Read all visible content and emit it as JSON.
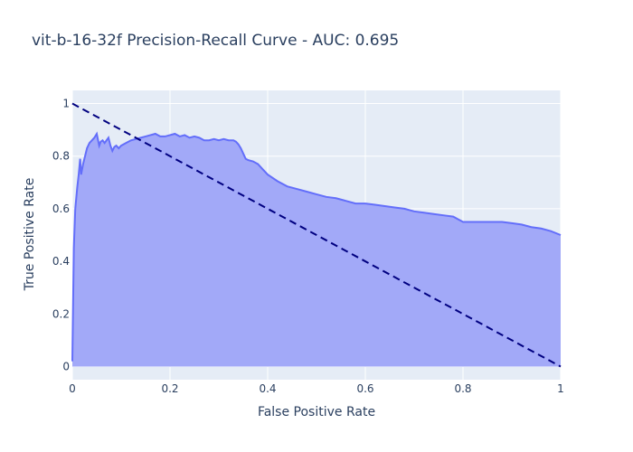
{
  "chart_data": {
    "type": "area",
    "title": "vit-b-16-32f Precision-Recall Curve - AUC: 0.695",
    "xlabel": "False Positive Rate",
    "ylabel": "True Positive Rate",
    "xlim": [
      0,
      1
    ],
    "ylim": [
      -0.05,
      1.05
    ],
    "x_ticks": [
      0,
      0.2,
      0.4,
      0.6,
      0.8,
      1
    ],
    "x_tick_labels": [
      "0",
      "0.2",
      "0.4",
      "0.6",
      "0.8",
      "1"
    ],
    "y_ticks": [
      0,
      0.2,
      0.4,
      0.6,
      0.8,
      1
    ],
    "y_tick_labels": [
      "0",
      "0.2",
      "0.4",
      "0.6",
      "0.8",
      "1"
    ],
    "grid": true,
    "series": [
      {
        "kind": "area",
        "color": "#636efa",
        "fill": "#a2a9f8",
        "x": [
          0,
          0.003,
          0.006,
          0.01,
          0.013,
          0.016,
          0.018,
          0.022,
          0.026,
          0.03,
          0.035,
          0.04,
          0.045,
          0.05,
          0.055,
          0.058,
          0.062,
          0.066,
          0.07,
          0.074,
          0.078,
          0.082,
          0.086,
          0.09,
          0.095,
          0.1,
          0.11,
          0.12,
          0.13,
          0.14,
          0.15,
          0.16,
          0.17,
          0.18,
          0.19,
          0.2,
          0.21,
          0.22,
          0.23,
          0.24,
          0.25,
          0.26,
          0.27,
          0.28,
          0.29,
          0.3,
          0.31,
          0.32,
          0.33,
          0.335,
          0.34,
          0.345,
          0.35,
          0.355,
          0.36,
          0.37,
          0.38,
          0.39,
          0.4,
          0.42,
          0.44,
          0.46,
          0.48,
          0.5,
          0.52,
          0.54,
          0.56,
          0.58,
          0.6,
          0.62,
          0.64,
          0.66,
          0.68,
          0.7,
          0.72,
          0.74,
          0.76,
          0.78,
          0.8,
          0.82,
          0.84,
          0.86,
          0.88,
          0.9,
          0.92,
          0.94,
          0.96,
          0.98,
          1.0
        ],
        "y": [
          0.02,
          0.45,
          0.6,
          0.68,
          0.73,
          0.79,
          0.73,
          0.77,
          0.8,
          0.83,
          0.85,
          0.86,
          0.87,
          0.885,
          0.84,
          0.855,
          0.86,
          0.85,
          0.86,
          0.87,
          0.84,
          0.82,
          0.835,
          0.84,
          0.83,
          0.84,
          0.85,
          0.86,
          0.865,
          0.87,
          0.875,
          0.88,
          0.885,
          0.875,
          0.875,
          0.88,
          0.885,
          0.875,
          0.88,
          0.87,
          0.875,
          0.87,
          0.86,
          0.86,
          0.865,
          0.86,
          0.865,
          0.86,
          0.86,
          0.855,
          0.845,
          0.83,
          0.81,
          0.79,
          0.785,
          0.78,
          0.77,
          0.75,
          0.73,
          0.705,
          0.685,
          0.675,
          0.665,
          0.655,
          0.645,
          0.64,
          0.63,
          0.62,
          0.62,
          0.615,
          0.61,
          0.605,
          0.6,
          0.59,
          0.585,
          0.58,
          0.575,
          0.57,
          0.55,
          0.55,
          0.55,
          0.55,
          0.55,
          0.545,
          0.54,
          0.53,
          0.525,
          0.515,
          0.5
        ]
      },
      {
        "kind": "line",
        "style": "dash",
        "color": "#000080",
        "x": [
          0,
          1
        ],
        "y": [
          1,
          0
        ]
      }
    ]
  }
}
